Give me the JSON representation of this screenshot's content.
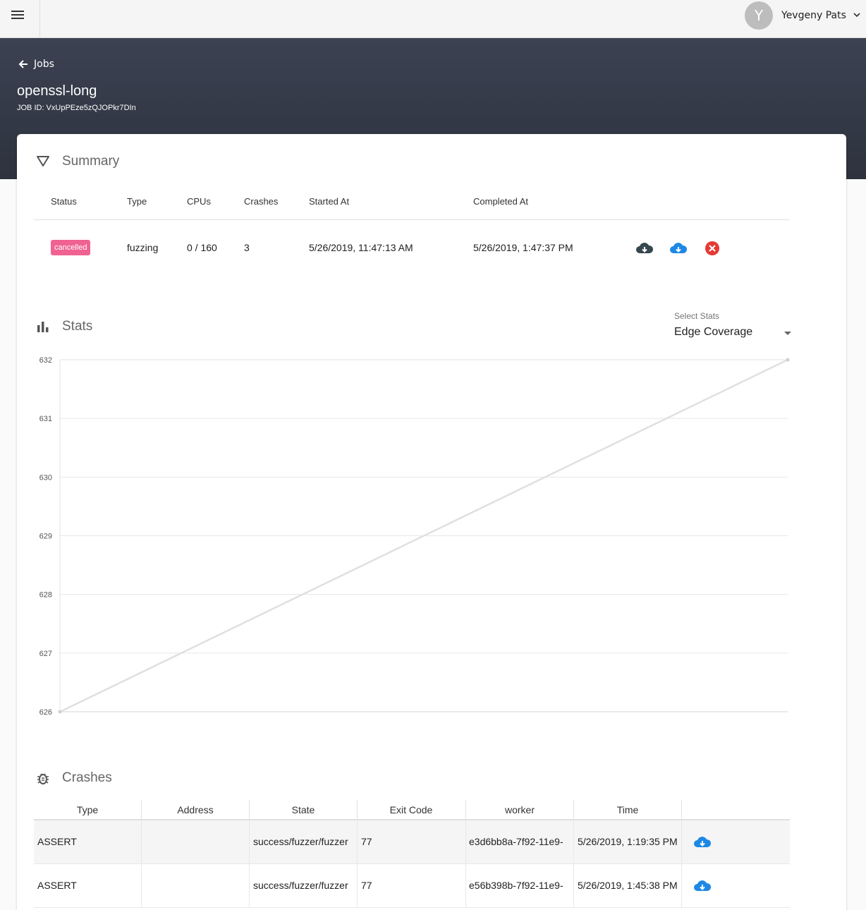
{
  "user": {
    "initial": "Y",
    "name": "Yevgeny Pats"
  },
  "header": {
    "back_label": "Jobs",
    "job_name": "openssl-long",
    "job_id_text": "JOB ID: VxUpPEze5zQJOPkr7DIn"
  },
  "summary": {
    "title": "Summary",
    "columns": [
      "Status",
      "Type",
      "CPUs",
      "Crashes",
      "Started At",
      "Completed At"
    ],
    "row": {
      "status": "cancelled",
      "type": "fuzzing",
      "cpus": "0 / 160",
      "crashes": "3",
      "started_at": "5/26/2019, 11:47:13 AM",
      "completed_at": "5/26/2019, 1:47:37 PM"
    },
    "actions": [
      "download-icon",
      "cloud-download-icon",
      "cancel-icon"
    ],
    "colors": {
      "badge": "#f06292",
      "cloud": "#1e88e5",
      "cancel": "#e53935"
    }
  },
  "stats": {
    "title": "Stats",
    "select_label": "Select Stats",
    "selected": "Edge Coverage"
  },
  "chart_data": {
    "type": "line",
    "x": [
      0,
      1
    ],
    "series": [
      {
        "values": [
          626,
          632
        ]
      }
    ],
    "yticks": [
      626,
      627,
      628,
      629,
      630,
      631,
      632
    ],
    "ylim": [
      626,
      632
    ],
    "grid": true
  },
  "crashes": {
    "title": "Crashes",
    "columns": [
      "Type",
      "Address",
      "State",
      "Exit Code",
      "worker",
      "Time"
    ],
    "rows": [
      {
        "type": "ASSERT",
        "address": "",
        "state": "success/fuzzer/fuzzer",
        "exit_code": "77",
        "worker": "e3d6bb8a-7f92-11e9-",
        "time": "5/26/2019, 1:19:35 PM"
      },
      {
        "type": "ASSERT",
        "address": "",
        "state": "success/fuzzer/fuzzer",
        "exit_code": "77",
        "worker": "e56b398b-7f92-11e9-",
        "time": "5/26/2019, 1:45:38 PM"
      }
    ]
  }
}
